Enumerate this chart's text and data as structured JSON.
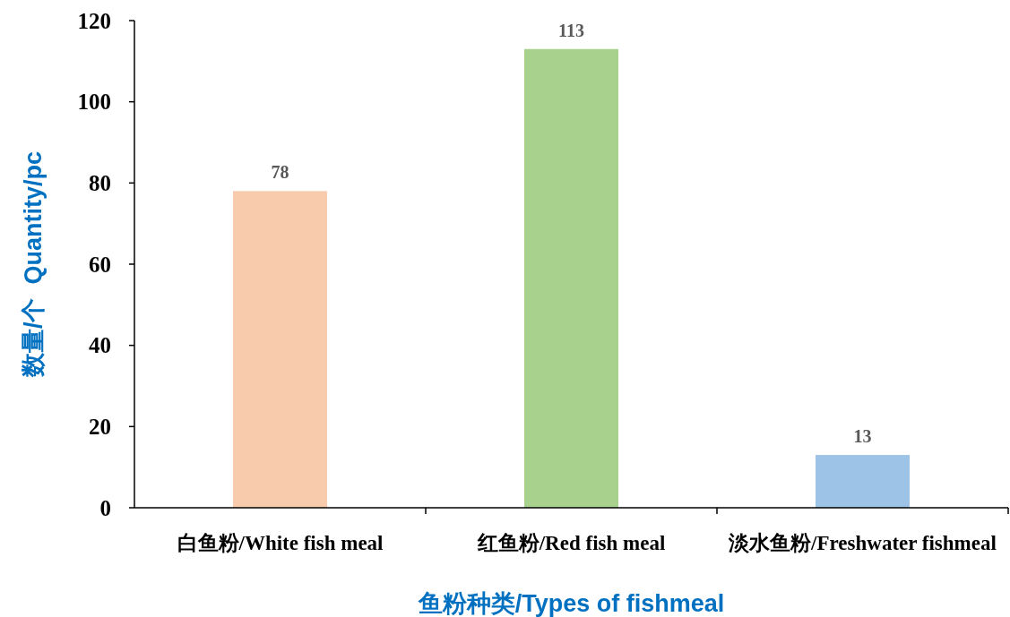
{
  "chart_data": {
    "type": "bar",
    "categories": [
      "白鱼粉/White fish meal",
      "红鱼粉/Red fish meal",
      "淡水鱼粉/Freshwater fishmeal"
    ],
    "values": [
      78,
      113,
      13
    ],
    "colors": [
      "#f8cbad",
      "#a9d18e",
      "#9dc3e6"
    ],
    "xlabel": "鱼粉种类/Types of fishmeal",
    "ylabel": "数量/个  Quantity/pc",
    "ylim": [
      0,
      120
    ],
    "yticks": [
      0,
      20,
      40,
      60,
      80,
      100,
      120
    ],
    "data_labels": true
  }
}
